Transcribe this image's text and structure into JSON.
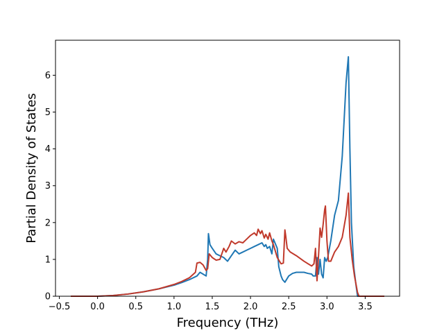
{
  "chart_data": {
    "type": "line",
    "title": "",
    "xlabel": "Frequency (THz)",
    "ylabel": "Partial Density of States",
    "xlim": [
      -0.55,
      3.95
    ],
    "ylim": [
      0,
      6.95
    ],
    "xticks": [
      -0.5,
      0.0,
      0.5,
      1.0,
      1.5,
      2.0,
      2.5,
      3.0,
      3.5
    ],
    "xtick_labels": [
      "−0.5",
      "0.0",
      "0.5",
      "1.0",
      "1.5",
      "2.0",
      "2.5",
      "3.0",
      "3.5"
    ],
    "yticks": [
      0,
      1,
      2,
      3,
      4,
      5,
      6
    ],
    "ytick_labels": [
      "0",
      "1",
      "2",
      "3",
      "4",
      "5",
      "6"
    ],
    "grid": false,
    "legend": false,
    "series": [
      {
        "color": "#1f77b4",
        "x": [
          -0.35,
          0.0,
          0.2,
          0.4,
          0.6,
          0.8,
          1.0,
          1.1,
          1.2,
          1.3,
          1.34,
          1.38,
          1.42,
          1.44,
          1.45,
          1.47,
          1.5,
          1.55,
          1.6,
          1.65,
          1.7,
          1.75,
          1.8,
          1.85,
          1.9,
          1.95,
          2.0,
          2.05,
          2.1,
          2.15,
          2.18,
          2.2,
          2.22,
          2.25,
          2.28,
          2.3,
          2.33,
          2.35,
          2.37,
          2.4,
          2.42,
          2.45,
          2.5,
          2.55,
          2.6,
          2.65,
          2.7,
          2.75,
          2.8,
          2.82,
          2.85,
          2.87,
          2.89,
          2.91,
          2.93,
          2.95,
          2.97,
          2.99,
          3.01,
          3.05,
          3.1,
          3.15,
          3.2,
          3.25,
          3.28,
          3.3,
          3.32,
          3.35,
          3.38,
          3.4,
          3.42,
          3.75
        ],
        "y": [
          0.0,
          0.0,
          0.02,
          0.06,
          0.12,
          0.2,
          0.3,
          0.37,
          0.45,
          0.55,
          0.65,
          0.6,
          0.55,
          1.0,
          1.7,
          1.4,
          1.3,
          1.15,
          1.1,
          1.05,
          0.95,
          1.1,
          1.25,
          1.15,
          1.2,
          1.25,
          1.3,
          1.35,
          1.4,
          1.45,
          1.35,
          1.4,
          1.3,
          1.35,
          1.15,
          1.55,
          1.4,
          1.3,
          0.8,
          0.55,
          0.45,
          0.38,
          0.55,
          0.62,
          0.65,
          0.65,
          0.65,
          0.62,
          0.6,
          0.55,
          0.55,
          1.05,
          0.6,
          1.0,
          0.6,
          0.5,
          1.05,
          0.95,
          1.05,
          1.5,
          2.2,
          2.6,
          3.8,
          5.8,
          6.5,
          4.0,
          2.0,
          0.8,
          0.3,
          0.0,
          0.0,
          0.0
        ]
      },
      {
        "color": "#c0392b",
        "x": [
          -0.35,
          0.0,
          0.2,
          0.4,
          0.6,
          0.8,
          1.0,
          1.1,
          1.2,
          1.28,
          1.3,
          1.34,
          1.38,
          1.42,
          1.44,
          1.46,
          1.5,
          1.55,
          1.6,
          1.65,
          1.68,
          1.72,
          1.75,
          1.8,
          1.85,
          1.9,
          1.95,
          2.0,
          2.05,
          2.08,
          2.1,
          2.13,
          2.15,
          2.18,
          2.2,
          2.23,
          2.25,
          2.28,
          2.3,
          2.35,
          2.4,
          2.43,
          2.45,
          2.46,
          2.48,
          2.52,
          2.6,
          2.7,
          2.8,
          2.83,
          2.85,
          2.87,
          2.89,
          2.91,
          2.93,
          2.95,
          2.97,
          2.98,
          3.0,
          3.02,
          3.05,
          3.1,
          3.15,
          3.2,
          3.25,
          3.28,
          3.3,
          3.33,
          3.36,
          3.4,
          3.42,
          3.75
        ],
        "y": [
          0.0,
          0.0,
          0.02,
          0.06,
          0.12,
          0.2,
          0.32,
          0.4,
          0.5,
          0.65,
          0.9,
          0.92,
          0.85,
          0.7,
          0.75,
          1.15,
          1.05,
          0.98,
          1.0,
          1.3,
          1.2,
          1.35,
          1.5,
          1.42,
          1.48,
          1.45,
          1.55,
          1.65,
          1.72,
          1.65,
          1.82,
          1.7,
          1.78,
          1.58,
          1.68,
          1.55,
          1.72,
          1.5,
          1.4,
          1.05,
          0.88,
          0.9,
          1.8,
          1.65,
          1.3,
          1.2,
          1.1,
          0.95,
          0.82,
          0.88,
          1.3,
          0.42,
          1.1,
          1.85,
          1.6,
          1.95,
          2.35,
          2.45,
          1.5,
          0.95,
          0.95,
          1.2,
          1.35,
          1.6,
          2.2,
          2.8,
          1.6,
          1.0,
          0.55,
          0.1,
          0.0,
          0.0
        ]
      }
    ]
  }
}
